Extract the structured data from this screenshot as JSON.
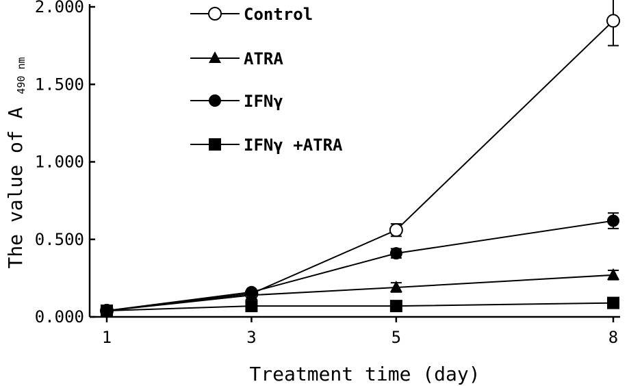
{
  "chart_data": {
    "type": "line",
    "xlabel": "Treatment time (day)",
    "ylabel": {
      "main": "The value of A",
      "subscript": "490 nm"
    },
    "x": [
      1,
      3,
      5,
      8
    ],
    "x_tick_labels": [
      "1",
      "3",
      "5",
      "8"
    ],
    "y_tick_labels": [
      "0.000",
      "0.500",
      "1.000",
      "1.500",
      "2.000"
    ],
    "ylim": [
      0,
      2
    ],
    "grid": false,
    "legend_position": "top-center",
    "series": [
      {
        "name": "Control",
        "marker": "circle-open",
        "values": [
          0.04,
          0.15,
          0.56,
          1.91
        ],
        "error": [
          0.0,
          0.0,
          0.04,
          0.16
        ]
      },
      {
        "name": "ATRA",
        "marker": "triangle",
        "values": [
          0.04,
          0.14,
          0.19,
          0.27
        ],
        "error": [
          0.0,
          0.0,
          0.03,
          0.03
        ]
      },
      {
        "name": "IFNγ",
        "marker": "circle-filled",
        "values": [
          0.04,
          0.16,
          0.41,
          0.62
        ],
        "error": [
          0.0,
          0.0,
          0.03,
          0.05
        ]
      },
      {
        "name": "IFNγ +ATRA",
        "marker": "square",
        "values": [
          0.04,
          0.07,
          0.07,
          0.09
        ],
        "error": [
          0.0,
          0.0,
          0.02,
          0.02
        ]
      }
    ]
  },
  "colors": {
    "ink": "#000000",
    "background": "#ffffff"
  }
}
